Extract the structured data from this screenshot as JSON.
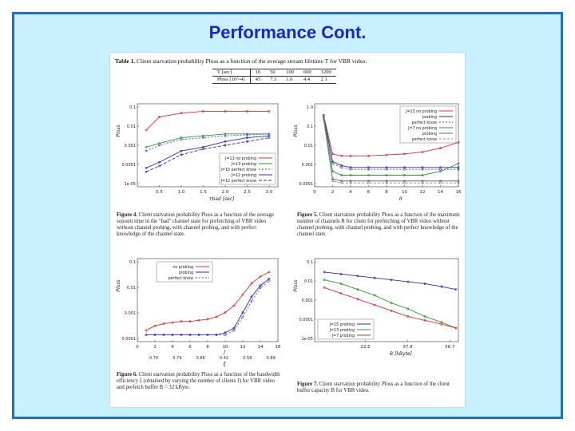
{
  "slide_title": "Performance Cont.",
  "table1": {
    "label": "Table 1.",
    "caption": "Client starvation probability Ploss as a function of the average stream lifetime T for VBR video.",
    "row1_head": "T [sec]",
    "row1": [
      "10",
      "50",
      "100",
      "600",
      "1200"
    ],
    "row2_head": "Ploss [10^-4]",
    "row2": [
      "45",
      "7.3",
      "1.6",
      "4.4",
      "2.1"
    ]
  },
  "fig4": {
    "label": "Figure 4.",
    "caption": "Client starvation probability Ploss as a function of the average sojourn time in the \"bad\" channel state for prefetching of VBR video without channel probing, with channel probing, and with perfect knowledge of the channel state."
  },
  "fig5": {
    "label": "Figure 5.",
    "caption": "Client starvation probability Ploss as a function of the maximum number of channels R for client for prefetching of VBR video without channel probing, with channel probing, and with perfect knowledge of the channel state."
  },
  "fig6": {
    "label": "Figure 6.",
    "caption": "Client starvation probability Ploss as a function of the bandwidth efficiency ξ (obtained by varying the number of clients J) for VBR video and prefetch buffer B = 32 kByte."
  },
  "fig7": {
    "label": "Figure 7.",
    "caption": "Client starvation probability Ploss as a function of the client buffer capacity B for VBR video."
  },
  "chart_data": [
    {
      "id": "fig4",
      "type": "line",
      "xlabel": "τbad [sec]",
      "ylabel": "Ploss",
      "x_ticks": [
        "0.5",
        "1.0",
        "1.5",
        "2.0",
        "2.5",
        "3.0"
      ],
      "y_ticks": [
        "0.1",
        "0.01",
        "0.001",
        "0.0001",
        "1e-05"
      ],
      "xlim": [
        0,
        3.2
      ],
      "ylog": [
        -5.2,
        -0.8
      ],
      "x": [
        0.2,
        0.5,
        1.0,
        1.5,
        2.0,
        2.5,
        3.0
      ],
      "series": [
        {
          "name": "J=11 no probing",
          "color": "#d83030",
          "dash": "",
          "values": [
            -2.2,
            -1.5,
            -1.3,
            -1.2,
            -1.2,
            -1.2,
            -1.2
          ]
        },
        {
          "name": "J=13 probing",
          "color": "#2a9a2a",
          "dash": "",
          "values": [
            -3.1,
            -2.9,
            -2.6,
            -2.5,
            -2.4,
            -2.4,
            -2.4
          ]
        },
        {
          "name": "J=15 perfect know",
          "color": "#4c4ccc",
          "dash": "2,2",
          "values": [
            -3.3,
            -3.0,
            -2.7,
            -2.6,
            -2.5,
            -2.45,
            -2.4
          ]
        },
        {
          "name": "J=12 probing",
          "color": "#2a2ab0",
          "dash": "",
          "values": [
            -4.2,
            -3.9,
            -3.3,
            -3.1,
            -2.8,
            -2.6,
            -2.5
          ]
        },
        {
          "name": "J=12 perfect know",
          "color": "#2a2a90",
          "dash": "4,2",
          "values": [
            -4.4,
            -4.1,
            -3.5,
            -3.2,
            -3.0,
            -2.8,
            -2.6
          ]
        }
      ]
    },
    {
      "id": "fig5",
      "type": "line",
      "xlabel": "R",
      "ylabel": "Ploss",
      "x_ticks": [
        "0",
        "2",
        "4",
        "6",
        "8",
        "10",
        "12",
        "14",
        "16"
      ],
      "y_ticks": [
        "1.0",
        "0.1",
        "0.01",
        "0.001",
        "0.0001"
      ],
      "xlim": [
        0,
        16
      ],
      "ylog": [
        -4.2,
        0.1
      ],
      "x": [
        1,
        2,
        3,
        4,
        6,
        8,
        10,
        12,
        14,
        16
      ],
      "series": [
        {
          "name": "J=13 no probing",
          "color": "#d83030",
          "dash": "",
          "values": [
            -0.5,
            -2.5,
            -2.6,
            -2.6,
            -2.6,
            -2.55,
            -2.5,
            -2.4,
            -2.2,
            -1.9
          ]
        },
        {
          "name": "probing",
          "color": "#2a2ab0",
          "dash": "",
          "values": [
            -0.5,
            -2.9,
            -3.1,
            -3.2,
            -3.2,
            -3.2,
            -3.2,
            -3.2,
            -3.2,
            -3.2
          ]
        },
        {
          "name": "perfect know",
          "color": "#4c4ccc",
          "dash": "2,2",
          "values": [
            -0.6,
            -3.0,
            -3.2,
            -3.3,
            -3.3,
            -3.3,
            -3.3,
            -3.3,
            -3.3,
            -3.3
          ]
        },
        {
          "name": "J=7 no probing",
          "color": "#2a9a2a",
          "dash": "",
          "values": [
            -0.6,
            -3.4,
            -3.6,
            -3.6,
            -3.6,
            -3.6,
            -3.6,
            -3.6,
            -3.4,
            -3.0
          ]
        },
        {
          "name": "probing",
          "color": "#666666",
          "dash": "",
          "values": [
            -0.7,
            -3.8,
            -3.9,
            -3.9,
            -3.9,
            -3.9,
            -3.9,
            -3.9,
            -3.9,
            -3.9
          ]
        },
        {
          "name": "perfect know",
          "color": "#888888",
          "dash": "3,2",
          "values": [
            -0.7,
            -3.9,
            -4.0,
            -4.0,
            -4.0,
            -4.0,
            -4.0,
            -4.0,
            -4.0,
            -4.0
          ]
        }
      ]
    },
    {
      "id": "fig6",
      "type": "line",
      "xlabel": "J",
      "xlabel2": "ξ",
      "ylabel": "Ploss",
      "x_ticks": [
        "0",
        "2",
        "4",
        "6",
        "8",
        "10",
        "12",
        "14",
        "16"
      ],
      "x2_ticks": [
        "0.74",
        "0.79",
        "0.86",
        "0.42",
        "0.58",
        "0.89"
      ],
      "y_ticks": [
        "0.1",
        "0.01",
        "0.001",
        "0.0001"
      ],
      "xlim": [
        0,
        16
      ],
      "ylog": [
        -4.3,
        -0.6
      ],
      "x": [
        1,
        2,
        3,
        4,
        5,
        6,
        7,
        8,
        9,
        10,
        11,
        12,
        13,
        14,
        15
      ],
      "series": [
        {
          "name": "no probing",
          "color": "#d83030",
          "dash": "",
          "values": [
            -3.8,
            -3.6,
            -3.5,
            -3.45,
            -3.4,
            -3.4,
            -3.35,
            -3.3,
            -3.2,
            -3.0,
            -2.7,
            -2.2,
            -1.7,
            -1.4,
            -1.2
          ]
        },
        {
          "name": "probing",
          "color": "#2a2ab0",
          "dash": "",
          "values": [
            -4.0,
            -4.0,
            -4.0,
            -4.0,
            -4.0,
            -4.0,
            -4.0,
            -4.0,
            -4.0,
            -3.9,
            -3.7,
            -3.0,
            -2.3,
            -1.8,
            -1.5
          ]
        },
        {
          "name": "perfect know",
          "color": "#4c4ccc",
          "dash": "2,2",
          "values": [
            -4.0,
            -4.0,
            -4.0,
            -4.0,
            -4.0,
            -4.0,
            -4.0,
            -4.0,
            -4.0,
            -4.0,
            -3.8,
            -3.2,
            -2.5,
            -1.9,
            -1.6
          ]
        }
      ]
    },
    {
      "id": "fig7",
      "type": "line",
      "xlabel": "B [kByte]",
      "ylabel": "Ploss",
      "x_ticks": [
        "22.5",
        "37.8",
        "56.7"
      ],
      "y_ticks": [
        "0.1",
        "0.01",
        "0.001",
        "0.0001",
        "1e-05"
      ],
      "xlim": [
        0,
        60
      ],
      "ylog": [
        -5.2,
        -0.9
      ],
      "x": [
        4,
        11,
        18,
        25,
        32,
        39,
        46,
        53,
        59
      ],
      "series": [
        {
          "name": "J=15 probing",
          "color": "#2a2ab0",
          "dash": "",
          "values": [
            -1.6,
            -1.7,
            -1.8,
            -1.9,
            -2.0,
            -2.1,
            -2.2,
            -2.35,
            -2.5
          ]
        },
        {
          "name": "J=13 probing",
          "color": "#2a9a2a",
          "dash": "",
          "values": [
            -2.0,
            -2.2,
            -2.5,
            -2.8,
            -3.2,
            -3.5,
            -3.9,
            -4.2,
            -4.5
          ]
        },
        {
          "name": "J=7 probing",
          "color": "#d83030",
          "dash": "",
          "values": [
            -2.4,
            -2.7,
            -3.0,
            -3.3,
            -3.6,
            -3.9,
            -4.1,
            -4.3,
            -4.5
          ]
        }
      ]
    }
  ]
}
